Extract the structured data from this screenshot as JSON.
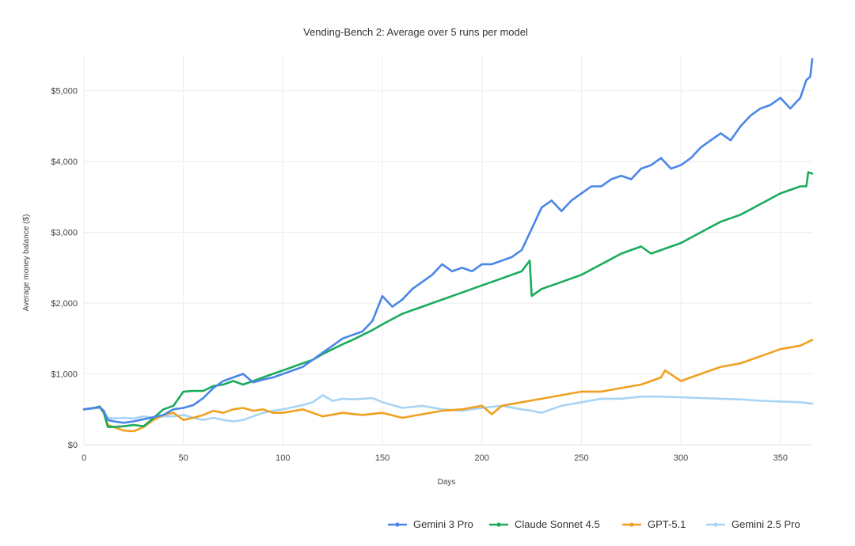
{
  "chart_data": {
    "type": "line",
    "title": "Vending-Bench 2: Average over 5 runs per model",
    "xlabel": "Days",
    "ylabel": "Average money balance ($)",
    "xlim": [
      0,
      366
    ],
    "ylim": [
      0,
      5500
    ],
    "x_ticks": [
      0,
      50,
      100,
      150,
      200,
      250,
      300,
      350
    ],
    "x_tick_labels": [
      "0",
      "50",
      "100",
      "150",
      "200",
      "250",
      "300",
      "350"
    ],
    "y_ticks": [
      0,
      1000,
      2000,
      3000,
      4000,
      5000
    ],
    "y_tick_labels": [
      "$0",
      "$1,000",
      "$2,000",
      "$3,000",
      "$4,000",
      "$5,000"
    ],
    "grid": true,
    "legend_position": "bottom-right",
    "series": [
      {
        "name": "Gemini 3 Pro",
        "color": "#4a86e8",
        "x": [
          0,
          5,
          8,
          10,
          12,
          15,
          20,
          25,
          30,
          35,
          40,
          45,
          50,
          55,
          60,
          65,
          70,
          75,
          80,
          85,
          90,
          95,
          100,
          105,
          110,
          115,
          120,
          125,
          130,
          135,
          140,
          145,
          150,
          155,
          160,
          165,
          170,
          175,
          180,
          185,
          190,
          195,
          200,
          205,
          210,
          215,
          220,
          225,
          230,
          235,
          240,
          245,
          250,
          255,
          260,
          265,
          270,
          275,
          280,
          285,
          290,
          295,
          300,
          305,
          310,
          315,
          320,
          325,
          330,
          335,
          340,
          345,
          350,
          355,
          360,
          363,
          365,
          366
        ],
        "y": [
          500,
          520,
          530,
          480,
          350,
          330,
          310,
          330,
          360,
          390,
          420,
          500,
          520,
          560,
          660,
          800,
          900,
          950,
          1000,
          880,
          920,
          950,
          1000,
          1050,
          1100,
          1200,
          1300,
          1400,
          1500,
          1550,
          1600,
          1750,
          2100,
          1950,
          2050,
          2200,
          2300,
          2400,
          2550,
          2450,
          2500,
          2450,
          2550,
          2550,
          2600,
          2650,
          2750,
          3050,
          3350,
          3450,
          3300,
          3450,
          3550,
          3650,
          3650,
          3750,
          3800,
          3750,
          3900,
          3950,
          4050,
          3900,
          3950,
          4050,
          4200,
          4300,
          4400,
          4300,
          4500,
          4650,
          4750,
          4800,
          4900,
          4750,
          4900,
          5150,
          5200,
          5450
        ]
      },
      {
        "name": "Claude Sonnet 4.5",
        "color": "#1aab5c",
        "x": [
          0,
          5,
          8,
          10,
          12,
          15,
          20,
          25,
          30,
          35,
          40,
          45,
          50,
          55,
          60,
          65,
          70,
          75,
          80,
          85,
          90,
          95,
          100,
          105,
          110,
          115,
          120,
          125,
          130,
          135,
          140,
          145,
          150,
          160,
          170,
          180,
          190,
          200,
          210,
          220,
          224,
          225,
          230,
          240,
          250,
          260,
          270,
          280,
          285,
          290,
          300,
          310,
          320,
          330,
          340,
          350,
          360,
          363,
          364,
          366
        ],
        "y": [
          500,
          520,
          540,
          450,
          250,
          250,
          260,
          280,
          260,
          380,
          500,
          550,
          750,
          760,
          760,
          830,
          850,
          900,
          850,
          900,
          950,
          1000,
          1050,
          1100,
          1150,
          1200,
          1280,
          1350,
          1420,
          1480,
          1550,
          1620,
          1700,
          1850,
          1950,
          2050,
          2150,
          2250,
          2350,
          2450,
          2600,
          2100,
          2200,
          2300,
          2400,
          2550,
          2700,
          2800,
          2700,
          2750,
          2850,
          3000,
          3150,
          3250,
          3400,
          3550,
          3650,
          3650,
          3850,
          3830
        ]
      },
      {
        "name": "GPT-5.1",
        "color": "#f0a020",
        "x": [
          0,
          5,
          8,
          10,
          12,
          15,
          20,
          25,
          30,
          35,
          40,
          45,
          50,
          55,
          60,
          65,
          70,
          75,
          80,
          85,
          90,
          95,
          100,
          110,
          120,
          130,
          140,
          150,
          160,
          170,
          180,
          190,
          200,
          205,
          210,
          220,
          230,
          240,
          250,
          260,
          270,
          280,
          290,
          292,
          300,
          310,
          320,
          330,
          340,
          350,
          360,
          366
        ],
        "y": [
          500,
          520,
          530,
          450,
          280,
          250,
          200,
          190,
          250,
          350,
          420,
          450,
          350,
          380,
          420,
          480,
          450,
          500,
          520,
          480,
          500,
          450,
          450,
          500,
          400,
          450,
          420,
          450,
          380,
          430,
          480,
          500,
          550,
          430,
          550,
          600,
          650,
          700,
          750,
          750,
          800,
          850,
          950,
          1050,
          900,
          1000,
          1100,
          1150,
          1250,
          1350,
          1400,
          1480
        ]
      },
      {
        "name": "Gemini 2.5 Pro",
        "color": "#a8d4f5",
        "x": [
          0,
          5,
          8,
          10,
          12,
          15,
          20,
          25,
          30,
          35,
          40,
          45,
          50,
          55,
          60,
          65,
          70,
          75,
          80,
          85,
          90,
          95,
          100,
          105,
          110,
          115,
          120,
          125,
          130,
          135,
          140,
          145,
          150,
          160,
          170,
          180,
          190,
          200,
          210,
          220,
          225,
          230,
          240,
          250,
          260,
          270,
          280,
          290,
          300,
          310,
          320,
          330,
          340,
          350,
          360,
          366
        ],
        "y": [
          500,
          510,
          520,
          450,
          380,
          370,
          380,
          370,
          400,
          380,
          400,
          400,
          420,
          380,
          350,
          380,
          350,
          330,
          350,
          400,
          450,
          480,
          500,
          530,
          560,
          600,
          700,
          620,
          650,
          640,
          650,
          660,
          600,
          520,
          550,
          500,
          480,
          520,
          550,
          500,
          480,
          450,
          550,
          600,
          650,
          650,
          680,
          680,
          670,
          660,
          650,
          640,
          620,
          610,
          600,
          580
        ]
      }
    ]
  }
}
